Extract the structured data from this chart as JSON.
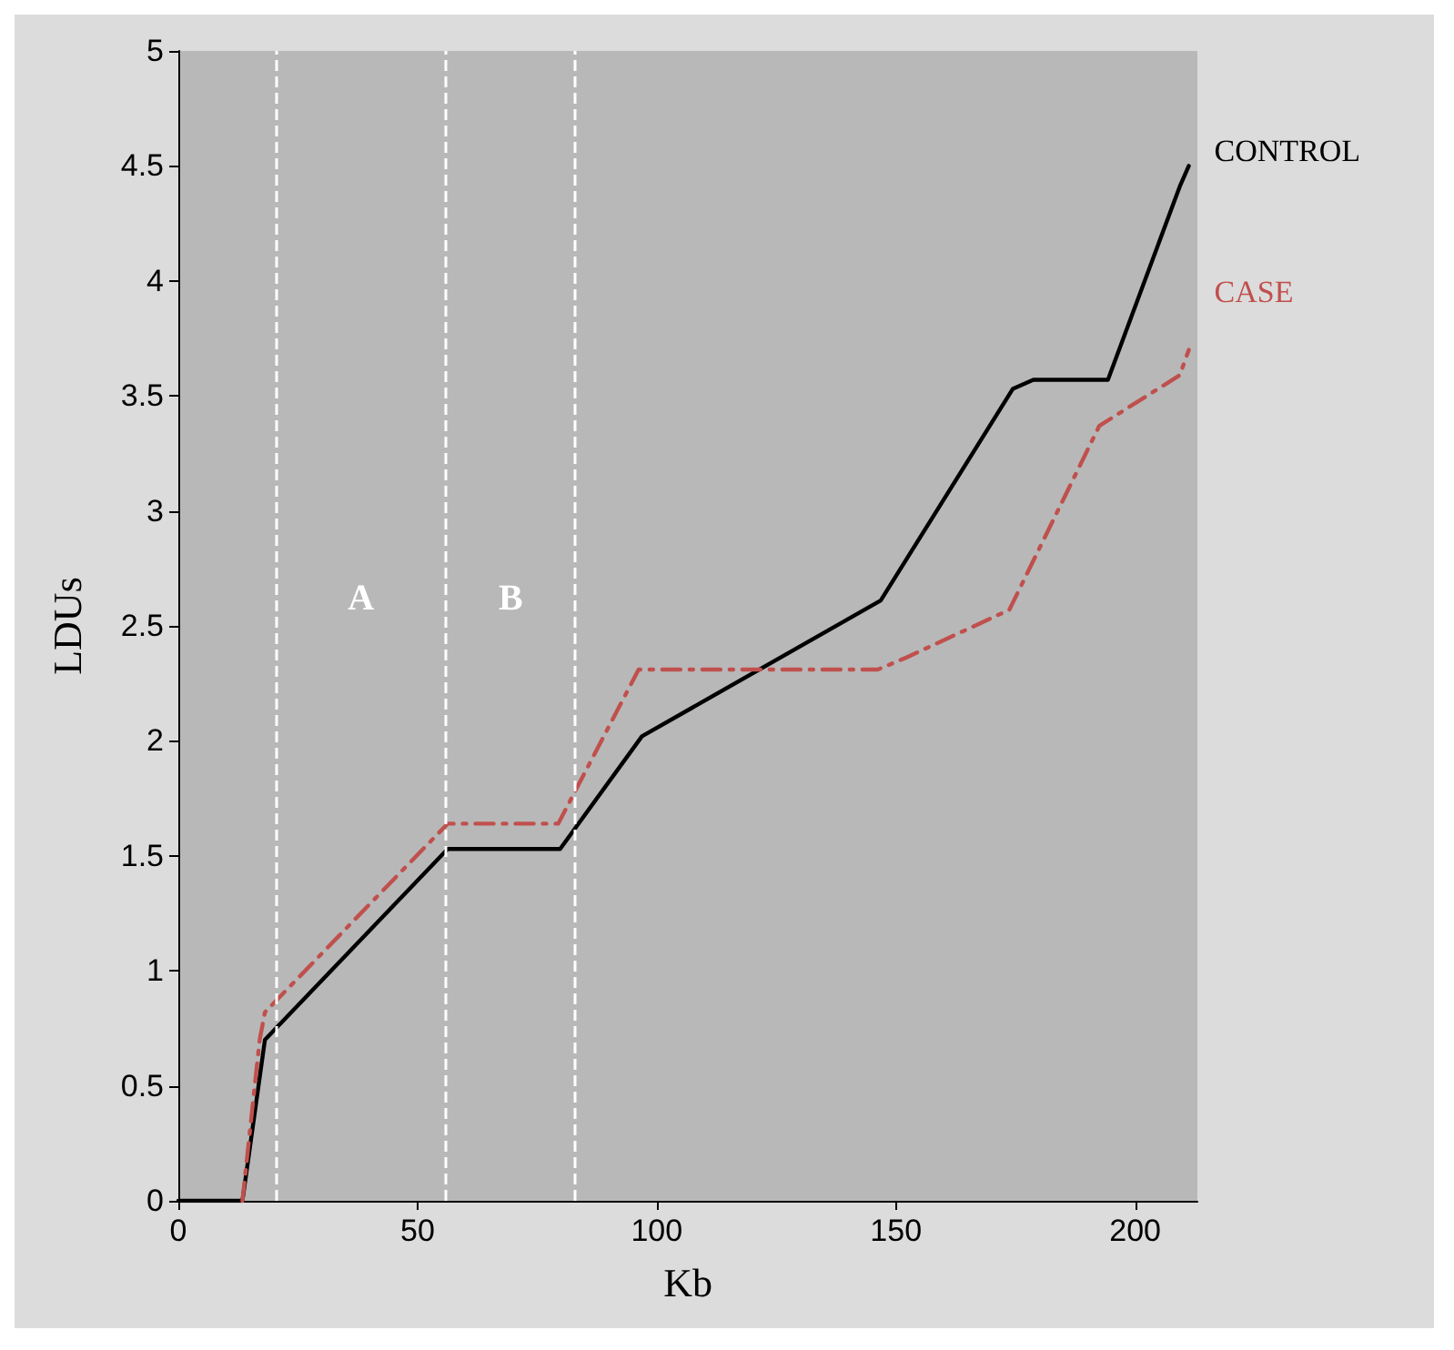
{
  "chart_data": {
    "type": "line",
    "xlabel": "Kb",
    "ylabel": "LDUs",
    "xlim": [
      0,
      213
    ],
    "xticks": [
      0,
      50,
      100,
      150,
      200
    ],
    "ylim": [
      0,
      5
    ],
    "yticks": [
      0,
      0.5,
      1,
      1.5,
      2,
      2.5,
      3,
      3.5,
      4,
      4.5,
      5
    ],
    "grid": false,
    "legend": false,
    "marker": "none",
    "series": [
      {
        "name": "CONTROL",
        "color": "#000000",
        "line_style": "solid",
        "x": [
          0,
          13.4,
          18.1,
          56.3,
          79.8,
          96.9,
          146.8,
          174.4,
          178.7,
          194.3,
          209.3,
          211.2
        ],
        "values": [
          0,
          0,
          0.7,
          1.53,
          1.53,
          2.02,
          2.61,
          3.53,
          3.57,
          3.57,
          4.41,
          4.5
        ]
      },
      {
        "name": "CASE",
        "color": "#c0504d",
        "line_style": "dashed",
        "x": [
          13.4,
          17,
          18.1,
          56.3,
          79.4,
          96.2,
          146.2,
          151.9,
          173.7,
          192.5,
          209.3,
          211.2
        ],
        "values": [
          0,
          0.7,
          0.82,
          1.64,
          1.64,
          2.31,
          2.31,
          2.36,
          2.57,
          3.37,
          3.59,
          3.7
        ]
      }
    ],
    "ref_lines": [
      {
        "axis": "x",
        "value": 20.3,
        "color": "#ffffff",
        "line_style": "dashed"
      },
      {
        "axis": "x",
        "value": 56,
        "color": "#ffffff",
        "line_style": "dashed"
      },
      {
        "axis": "x",
        "value": 83,
        "color": "#ffffff",
        "line_style": "dashed"
      }
    ],
    "annotations": [
      "A",
      "B"
    ]
  }
}
